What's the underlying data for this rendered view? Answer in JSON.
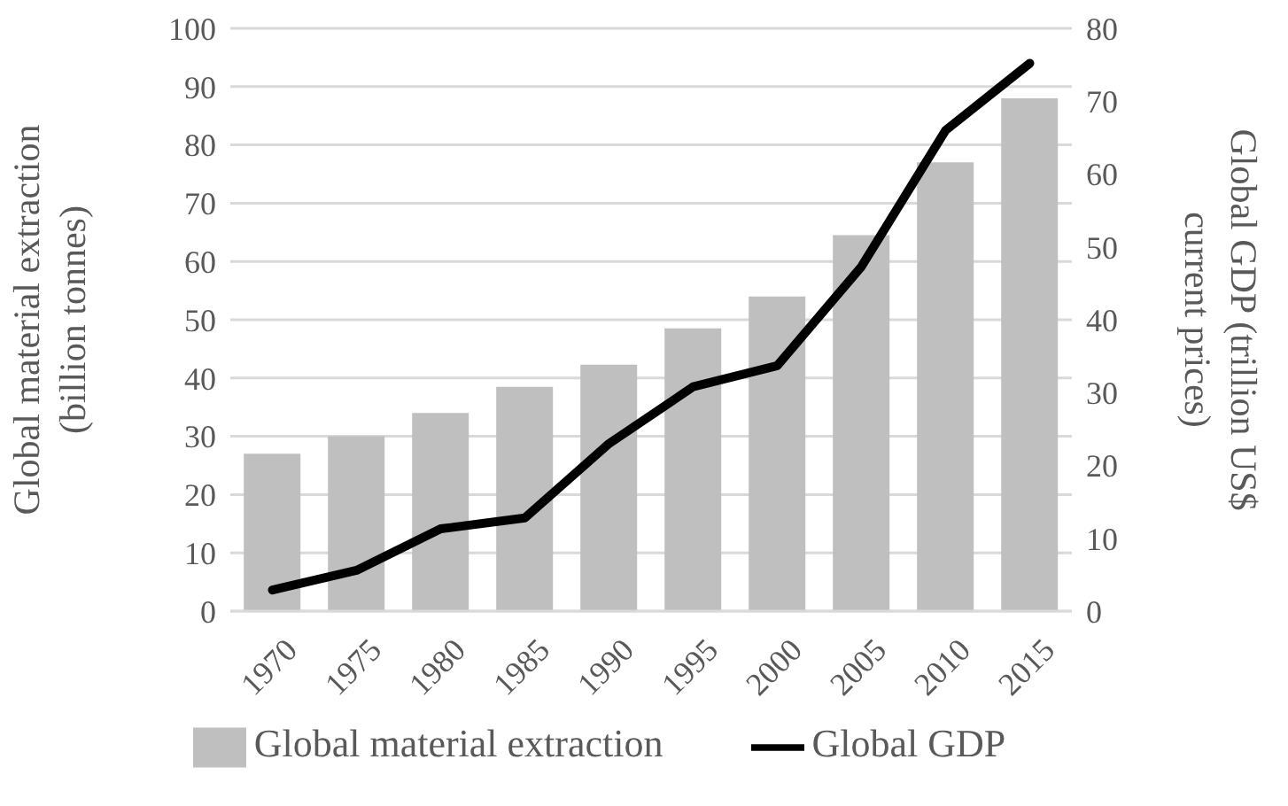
{
  "chart_data": {
    "type": "bar",
    "categories": [
      "1970",
      "1975",
      "1980",
      "1985",
      "1990",
      "1995",
      "2000",
      "2005",
      "2010",
      "2015"
    ],
    "series": [
      {
        "name": "Global material extraction",
        "color": "#bfbfbf",
        "values": [
          27,
          30,
          34,
          38.5,
          42.3,
          48.5,
          54,
          64.5,
          77,
          88
        ]
      },
      {
        "name": "Global GDP",
        "type": "line",
        "axis": "y2",
        "color": "#000000",
        "values": [
          2.9,
          5.6,
          11.3,
          12.8,
          23,
          30.8,
          33.7,
          47.3,
          66,
          75.2
        ]
      }
    ],
    "ylabel": "Global material extraction\n(billion tonnes)",
    "y2label": "Global GDP (trillion US$\ncurrent prices)",
    "ylim": [
      0,
      100
    ],
    "yticks": [
      0,
      10,
      20,
      30,
      40,
      50,
      60,
      70,
      80,
      90,
      100
    ],
    "y2lim": [
      0,
      80
    ],
    "y2ticks": [
      0,
      10,
      20,
      30,
      40,
      50,
      60,
      70,
      80
    ],
    "grid": "y",
    "legend": "bottom",
    "marker": "none"
  }
}
